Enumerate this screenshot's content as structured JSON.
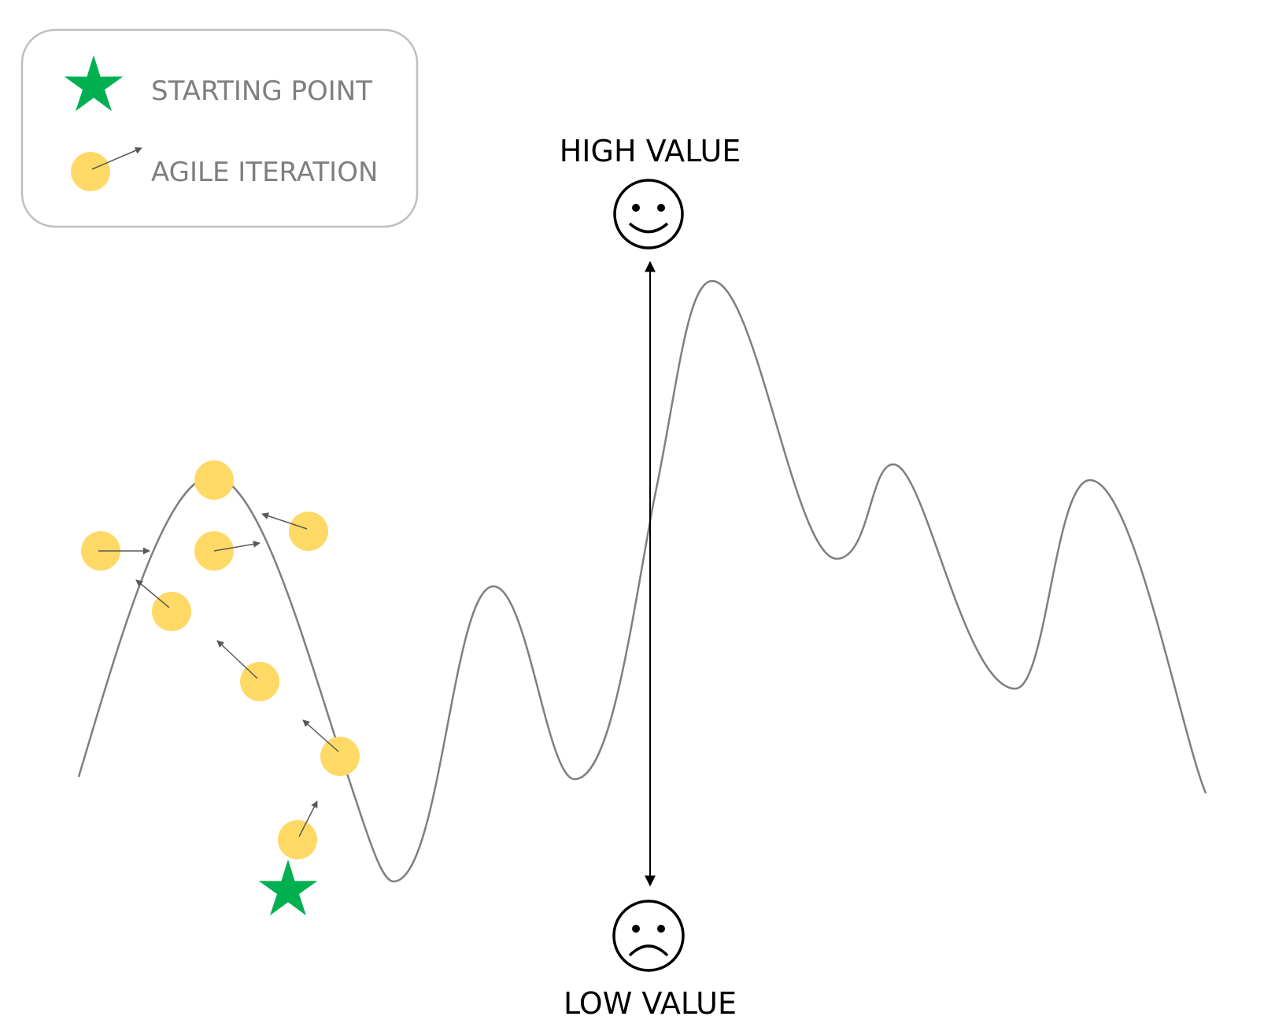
{
  "legend": {
    "starting_point_label": "STARTING POINT",
    "agile_iteration_label": "AGILE ITERATION",
    "starting_point_icon": "star-icon",
    "agile_iteration_icon": "circle-arrow-icon"
  },
  "axis": {
    "high_label": "HIGH VALUE",
    "low_label": "LOW VALUE",
    "high_icon": "happy-face-icon",
    "low_icon": "sad-face-icon"
  },
  "colors": {
    "star": "#00b050",
    "iteration": "#ffd966",
    "curve": "#7f7f7f",
    "arrow": "#595959",
    "legend_border": "#bfbfbf",
    "legend_text": "#7f7f7f",
    "axis": "#000000"
  }
}
